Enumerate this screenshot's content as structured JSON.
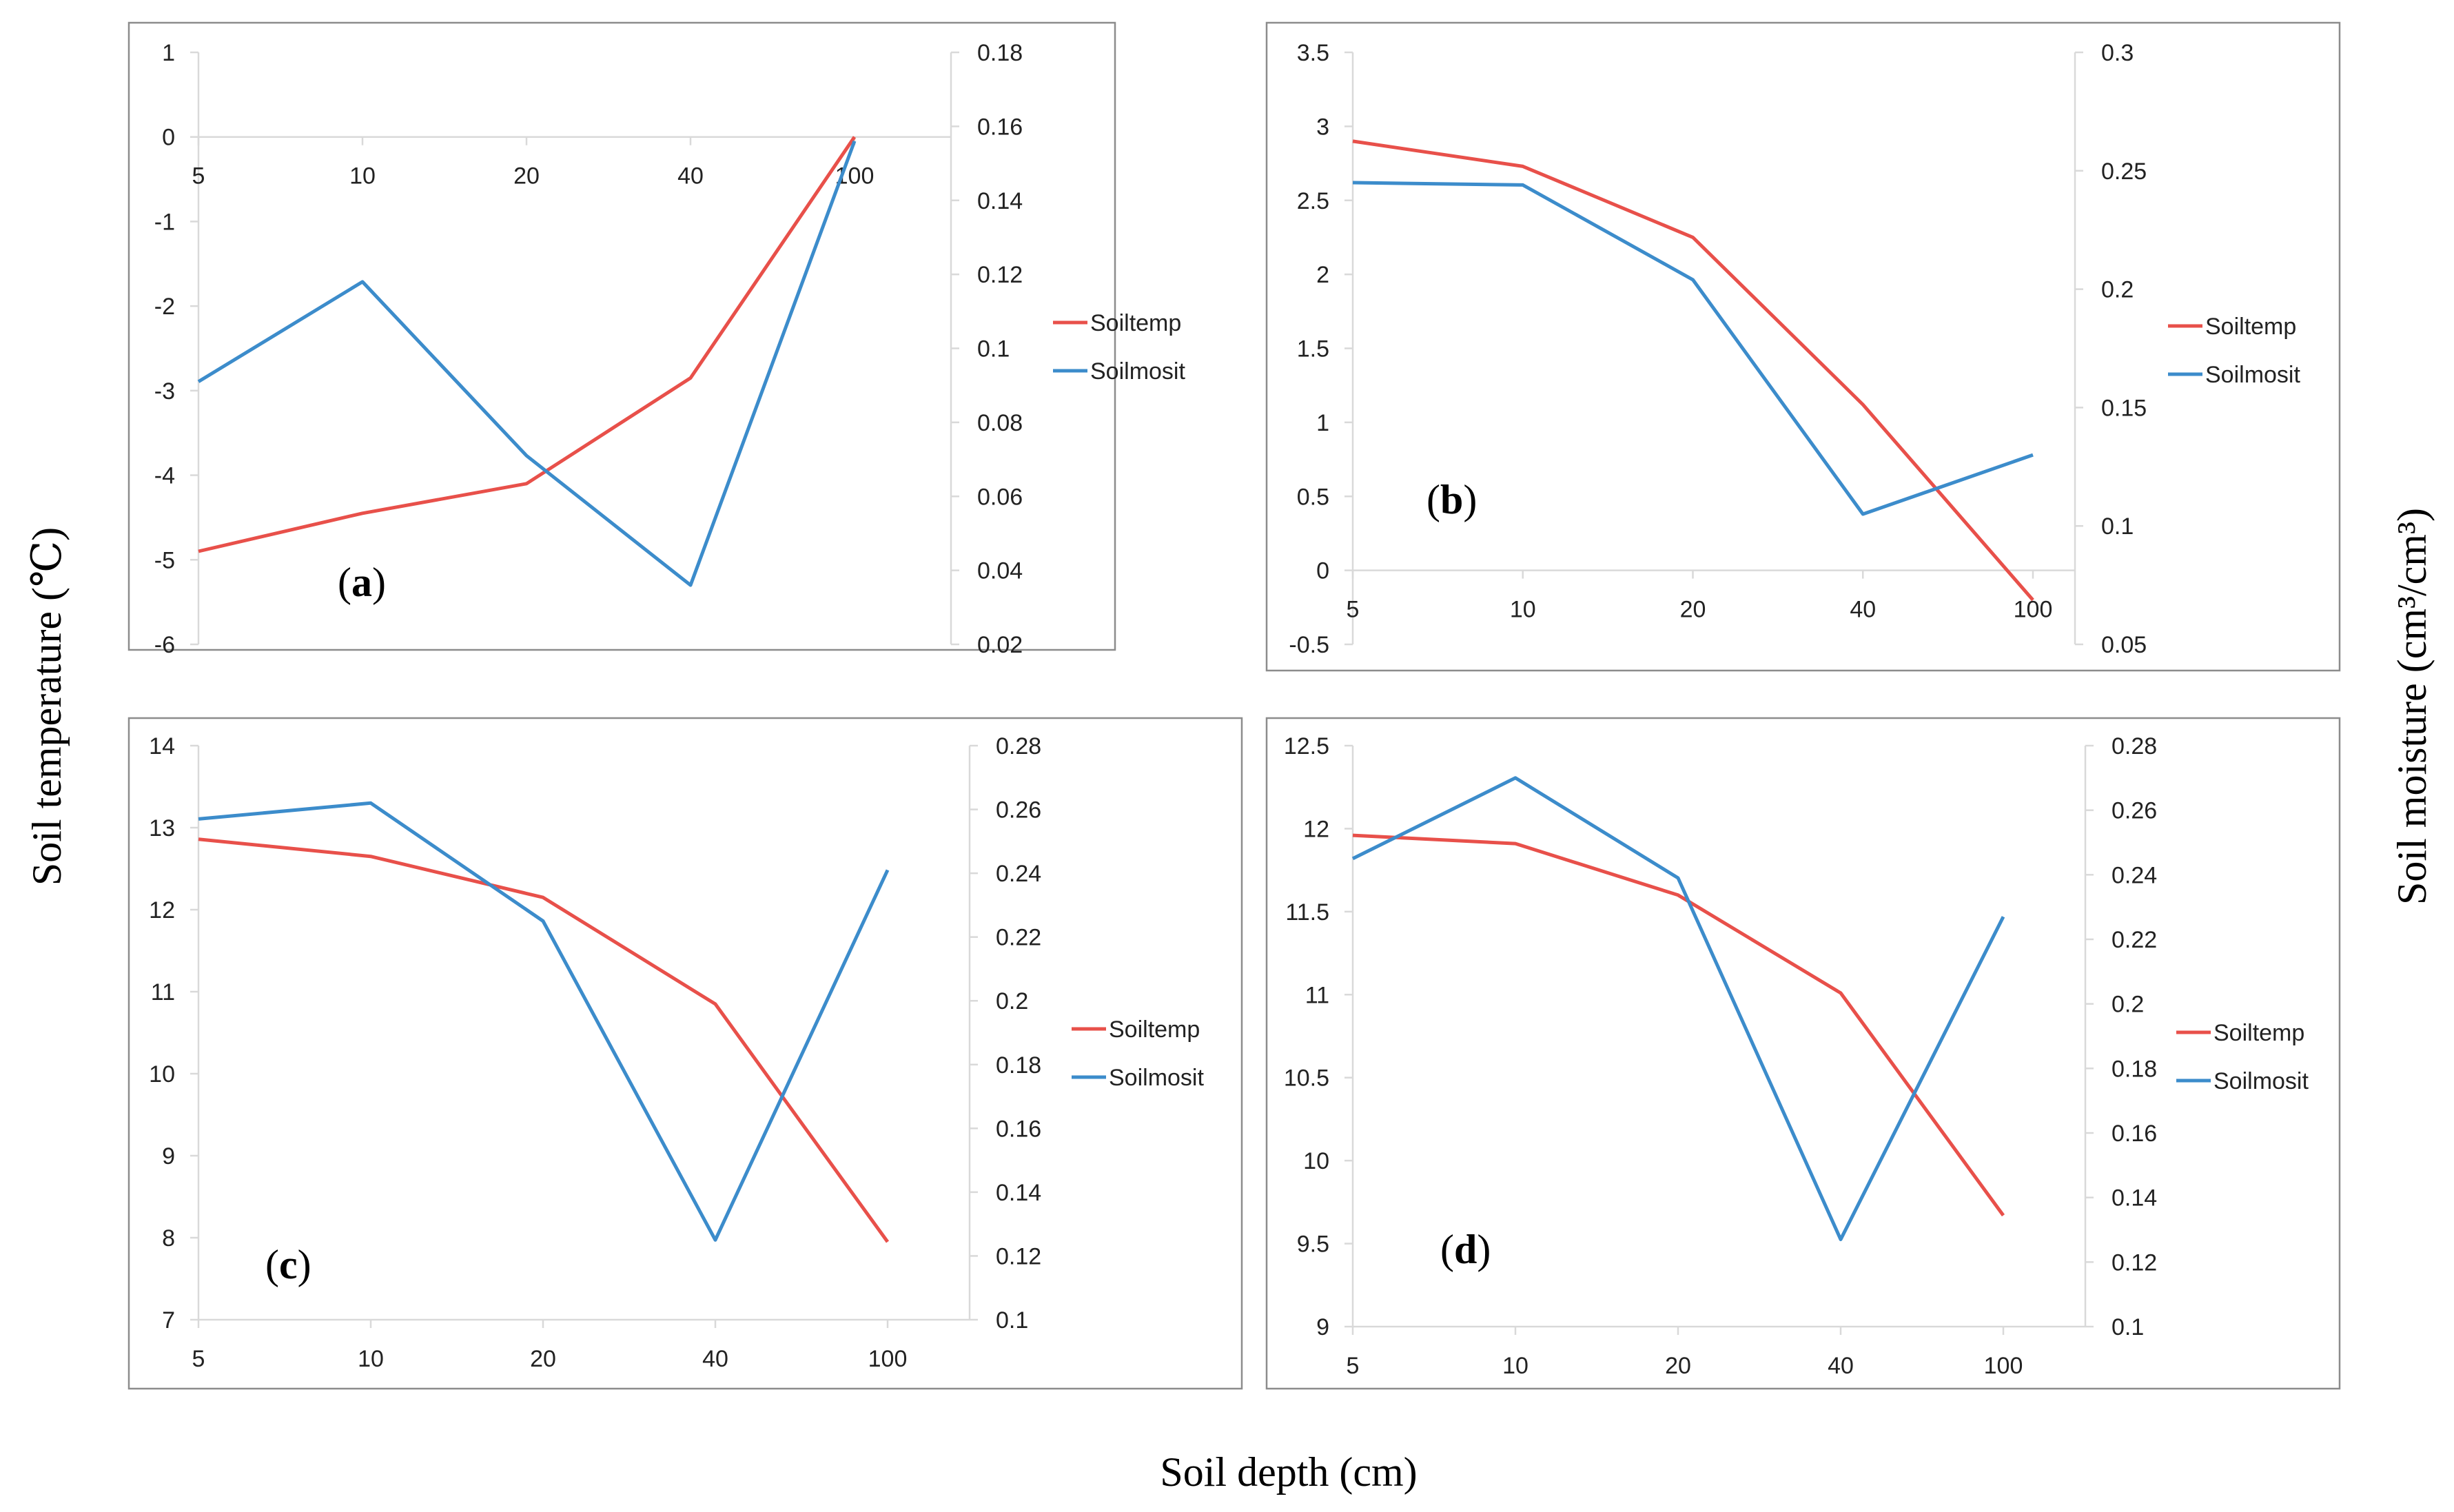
{
  "figure": {
    "y_left_title": "Soil temperature (℃)",
    "y_right_title": "Soil moisture (cm³/cm³)",
    "x_title": "Soil depth (cm)"
  },
  "colors": {
    "temp": "#E8504A",
    "moist": "#3C8CCB"
  },
  "chart_data": [
    {
      "type": "line",
      "panel": "(a)",
      "categories": [
        "5",
        "10",
        "20",
        "40",
        "100"
      ],
      "x_axis_crosses": 0,
      "y_left": {
        "min": -6,
        "max": 1,
        "step": 1,
        "ticks": [
          "1",
          "0",
          "-1",
          "-2",
          "-3",
          "-4",
          "-5",
          "-6"
        ]
      },
      "y_right": {
        "min": 0.02,
        "max": 0.18,
        "step": 0.02,
        "ticks": [
          "0.18",
          "0.16",
          "0.14",
          "0.12",
          "0.1",
          "0.08",
          "0.06",
          "0.04",
          "0.02"
        ]
      },
      "series": [
        {
          "name": "Soiltemp",
          "axis": "left",
          "values": [
            -4.9,
            -4.45,
            -4.1,
            -2.85,
            0.0
          ]
        },
        {
          "name": "Soilmosit",
          "axis": "right",
          "values": [
            0.091,
            0.118,
            0.071,
            0.036,
            0.156
          ]
        }
      ]
    },
    {
      "type": "line",
      "panel": "(b)",
      "categories": [
        "5",
        "10",
        "20",
        "40",
        "100"
      ],
      "x_axis_crosses": 0,
      "y_left": {
        "min": -0.5,
        "max": 3.5,
        "step": 0.5,
        "ticks": [
          "3.5",
          "3",
          "2.5",
          "2",
          "1.5",
          "1",
          "0.5",
          "0",
          "-0.5"
        ]
      },
      "y_right": {
        "min": 0.05,
        "max": 0.3,
        "step": 0.05,
        "ticks": [
          "0.3",
          "0.25",
          "0.2",
          "0.15",
          "0.1",
          "0.05"
        ]
      },
      "series": [
        {
          "name": "Soiltemp",
          "axis": "left",
          "values": [
            2.9,
            2.73,
            2.25,
            1.12,
            -0.2
          ]
        },
        {
          "name": "Soilmosit",
          "axis": "right",
          "values": [
            0.245,
            0.244,
            0.204,
            0.105,
            0.13
          ]
        }
      ]
    },
    {
      "type": "line",
      "panel": "(c)",
      "categories": [
        "5",
        "10",
        "20",
        "40",
        "100"
      ],
      "x_axis_crosses": 7,
      "y_left": {
        "min": 7,
        "max": 14,
        "step": 1,
        "ticks": [
          "14",
          "13",
          "12",
          "11",
          "10",
          "9",
          "8",
          "7"
        ]
      },
      "y_right": {
        "min": 0.1,
        "max": 0.28,
        "step": 0.02,
        "ticks": [
          "0.28",
          "0.26",
          "0.24",
          "0.22",
          "0.2",
          "0.18",
          "0.16",
          "0.14",
          "0.12",
          "0.1"
        ]
      },
      "series": [
        {
          "name": "Soiltemp",
          "axis": "left",
          "values": [
            12.86,
            12.65,
            12.15,
            10.85,
            7.95
          ]
        },
        {
          "name": "Soilmosit",
          "axis": "right",
          "values": [
            0.257,
            0.262,
            0.225,
            0.125,
            0.241
          ]
        }
      ]
    },
    {
      "type": "line",
      "panel": "(d)",
      "categories": [
        "5",
        "10",
        "20",
        "40",
        "100"
      ],
      "x_axis_crosses": 9,
      "y_left": {
        "min": 9,
        "max": 12.5,
        "step": 0.5,
        "ticks": [
          "12.5",
          "12",
          "11.5",
          "11",
          "10.5",
          "10",
          "9.5",
          "9"
        ]
      },
      "y_right": {
        "min": 0.1,
        "max": 0.28,
        "step": 0.02,
        "ticks": [
          "0.28",
          "0.26",
          "0.24",
          "0.22",
          "0.2",
          "0.18",
          "0.16",
          "0.14",
          "0.12",
          "0.1"
        ]
      },
      "series": [
        {
          "name": "Soiltemp",
          "axis": "left",
          "values": [
            11.96,
            11.91,
            11.6,
            11.01,
            9.67
          ]
        },
        {
          "name": "Soilmosit",
          "axis": "right",
          "values": [
            0.245,
            0.27,
            0.239,
            0.127,
            0.227
          ]
        }
      ]
    }
  ]
}
